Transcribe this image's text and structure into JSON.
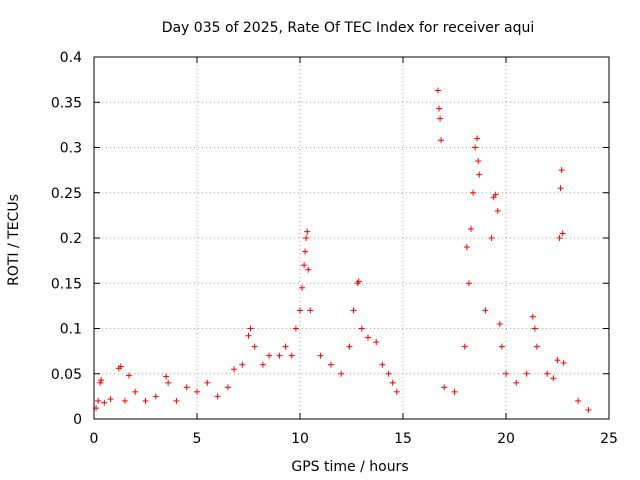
{
  "chart_data": {
    "type": "scatter",
    "title": "Day 035 of 2025, Rate Of TEC Index for receiver aqui",
    "xlabel": "GPS time / hours",
    "ylabel": "ROTI / TECUs",
    "xlim": [
      0,
      25
    ],
    "ylim": [
      0,
      0.4
    ],
    "xticks": [
      "0",
      "5",
      "10",
      "15",
      "20",
      "25"
    ],
    "yticks": [
      "0",
      "0.05",
      "0.1",
      "0.15",
      "0.2",
      "0.25",
      "0.3",
      "0.35",
      "0.4"
    ],
    "grid": true,
    "marker": "plus",
    "color": "#ff0000",
    "series": [
      {
        "points": [
          [
            0.1,
            0.012
          ],
          [
            0.2,
            0.02
          ],
          [
            0.3,
            0.04
          ],
          [
            0.35,
            0.043
          ],
          [
            0.5,
            0.018
          ],
          [
            0.8,
            0.022
          ],
          [
            1.2,
            0.056
          ],
          [
            1.3,
            0.058
          ],
          [
            1.5,
            0.02
          ],
          [
            1.7,
            0.048
          ],
          [
            2.0,
            0.03
          ],
          [
            2.5,
            0.02
          ],
          [
            3.0,
            0.025
          ],
          [
            3.5,
            0.047
          ],
          [
            3.6,
            0.04
          ],
          [
            4.0,
            0.02
          ],
          [
            4.5,
            0.035
          ],
          [
            5.0,
            0.03
          ],
          [
            5.5,
            0.04
          ],
          [
            6.0,
            0.025
          ],
          [
            6.5,
            0.035
          ],
          [
            6.8,
            0.055
          ],
          [
            7.2,
            0.06
          ],
          [
            7.5,
            0.092
          ],
          [
            7.6,
            0.1
          ],
          [
            7.8,
            0.08
          ],
          [
            8.2,
            0.06
          ],
          [
            8.5,
            0.07
          ],
          [
            9.0,
            0.07
          ],
          [
            9.3,
            0.08
          ],
          [
            9.6,
            0.07
          ],
          [
            9.8,
            0.1
          ],
          [
            10.0,
            0.12
          ],
          [
            10.1,
            0.145
          ],
          [
            10.2,
            0.17
          ],
          [
            10.25,
            0.185
          ],
          [
            10.3,
            0.2
          ],
          [
            10.35,
            0.207
          ],
          [
            10.4,
            0.165
          ],
          [
            10.5,
            0.12
          ],
          [
            11.0,
            0.07
          ],
          [
            11.5,
            0.06
          ],
          [
            12.0,
            0.05
          ],
          [
            12.4,
            0.08
          ],
          [
            12.6,
            0.12
          ],
          [
            12.8,
            0.15
          ],
          [
            12.85,
            0.152
          ],
          [
            13.0,
            0.1
          ],
          [
            13.3,
            0.09
          ],
          [
            13.7,
            0.085
          ],
          [
            14.0,
            0.06
          ],
          [
            14.3,
            0.05
          ],
          [
            14.5,
            0.04
          ],
          [
            14.7,
            0.03
          ],
          [
            16.7,
            0.363
          ],
          [
            16.75,
            0.343
          ],
          [
            16.8,
            0.332
          ],
          [
            16.85,
            0.308
          ],
          [
            17.0,
            0.035
          ],
          [
            17.5,
            0.03
          ],
          [
            18.0,
            0.08
          ],
          [
            18.1,
            0.19
          ],
          [
            18.2,
            0.15
          ],
          [
            18.3,
            0.21
          ],
          [
            18.4,
            0.25
          ],
          [
            18.5,
            0.3
          ],
          [
            18.6,
            0.31
          ],
          [
            18.65,
            0.285
          ],
          [
            18.7,
            0.27
          ],
          [
            19.0,
            0.12
          ],
          [
            19.3,
            0.2
          ],
          [
            19.4,
            0.245
          ],
          [
            19.5,
            0.248
          ],
          [
            19.6,
            0.23
          ],
          [
            19.7,
            0.105
          ],
          [
            19.8,
            0.08
          ],
          [
            20.0,
            0.05
          ],
          [
            20.5,
            0.04
          ],
          [
            21.0,
            0.05
          ],
          [
            21.3,
            0.113
          ],
          [
            21.4,
            0.1
          ],
          [
            21.5,
            0.08
          ],
          [
            22.0,
            0.05
          ],
          [
            22.3,
            0.045
          ],
          [
            22.5,
            0.065
          ],
          [
            22.6,
            0.2
          ],
          [
            22.65,
            0.255
          ],
          [
            22.7,
            0.275
          ],
          [
            22.75,
            0.205
          ],
          [
            22.8,
            0.062
          ],
          [
            23.5,
            0.02
          ],
          [
            24.0,
            0.01
          ]
        ]
      }
    ]
  }
}
